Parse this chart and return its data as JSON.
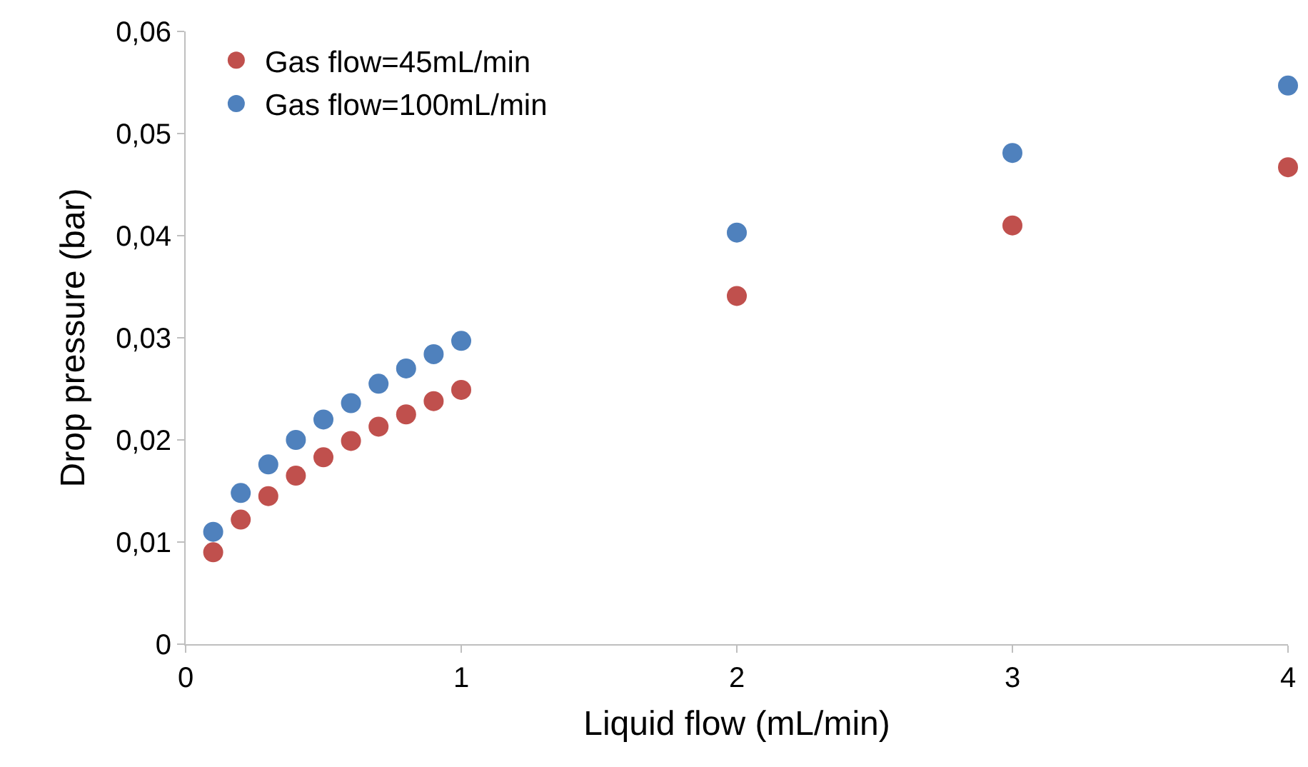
{
  "chart_data": {
    "type": "scatter",
    "xlabel": "Liquid flow (mL/min)",
    "ylabel": "Drop pressure (bar)",
    "xlim": [
      0,
      4
    ],
    "xticks": [
      0,
      1,
      2,
      3,
      4
    ],
    "ylim": [
      0,
      0.06
    ],
    "yticks": [
      0,
      {
        "value": 0.01,
        "label": "0,01"
      },
      {
        "value": 0.02,
        "label": "0,02"
      },
      {
        "value": 0.03,
        "label": "0,03"
      },
      {
        "value": 0.04,
        "label": "0,04"
      },
      {
        "value": 0.05,
        "label": "0,05"
      },
      {
        "value": 0.06,
        "label": "0,06"
      }
    ],
    "x": [
      0.1,
      0.2,
      0.3,
      0.4,
      0.5,
      0.6,
      0.7,
      0.8,
      0.9,
      1,
      2,
      3,
      4
    ],
    "grid": false,
    "legend": "top left",
    "marker": "circle",
    "series": [
      {
        "name": "Gas flow=45mL/min",
        "color": "#c0504d",
        "values": [
          0.009,
          0.0122,
          0.0145,
          0.0165,
          0.0183,
          0.0199,
          0.0213,
          0.0225,
          0.0238,
          0.0249,
          0.0341,
          0.041,
          0.0467
        ]
      },
      {
        "name": "Gas flow=100mL/min",
        "color": "#4f81bd",
        "values": [
          0.011,
          0.0148,
          0.0176,
          0.02,
          0.022,
          0.0236,
          0.0255,
          0.027,
          0.0284,
          0.0297,
          0.0403,
          0.0481,
          0.0547
        ]
      }
    ]
  }
}
